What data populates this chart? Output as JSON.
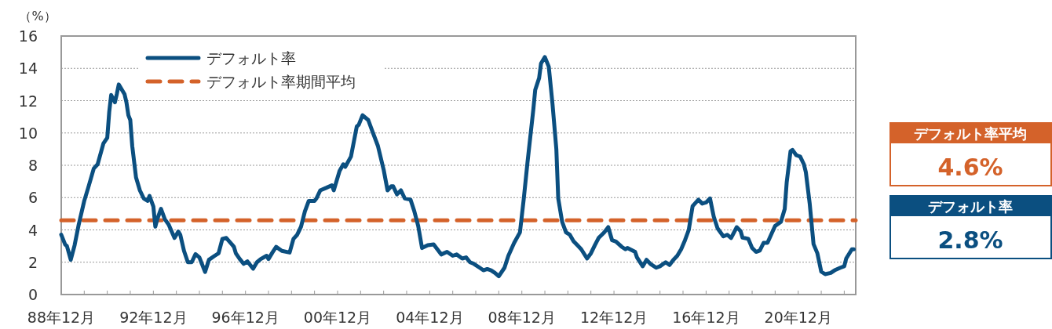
{
  "chart_data": {
    "type": "line",
    "ylabel": "（%）",
    "x": [
      "1988-12",
      "1989-02",
      "1989-03",
      "1989-05",
      "1989-07",
      "1989-09",
      "1989-12",
      "1990-02",
      "1990-05",
      "1990-07",
      "1990-10",
      "1990-12",
      "1991-01",
      "1991-02",
      "1991-04",
      "1991-05",
      "1991-06",
      "1991-09",
      "1991-10",
      "1991-11",
      "1991-12",
      "1992-01",
      "1992-03",
      "1992-05",
      "1992-07",
      "1992-09",
      "1992-10",
      "1992-12",
      "1993-01",
      "1993-02",
      "1993-04",
      "1993-06",
      "1993-08",
      "1993-11",
      "1994-01",
      "1994-02",
      "1994-04",
      "1994-06",
      "1994-08",
      "1994-10",
      "1994-12",
      "1995-03",
      "1995-05",
      "1995-08",
      "1995-10",
      "1995-12",
      "1996-02",
      "1996-05",
      "1996-06",
      "1996-07",
      "1996-09",
      "1996-11",
      "1997-01",
      "1997-04",
      "1997-06",
      "1997-08",
      "1997-11",
      "1997-12",
      "1998-02",
      "1998-04",
      "1998-07",
      "1998-11",
      "1999-01",
      "1999-03",
      "1999-05",
      "1999-07",
      "1999-09",
      "1999-12",
      "2000-01",
      "2000-03",
      "2000-06",
      "2000-09",
      "2000-10",
      "2001-01",
      "2001-03",
      "2001-04",
      "2001-07",
      "2001-10",
      "2001-11",
      "2002-01",
      "2002-04",
      "2002-06",
      "2002-09",
      "2002-12",
      "2003-02",
      "2003-04",
      "2003-05",
      "2003-07",
      "2003-09",
      "2003-11",
      "2004-02",
      "2004-04",
      "2004-06",
      "2004-08",
      "2004-11",
      "2005-02",
      "2005-04",
      "2005-06",
      "2005-09",
      "2005-12",
      "2006-02",
      "2006-05",
      "2006-07",
      "2006-09",
      "2006-11",
      "2007-02",
      "2007-04",
      "2007-06",
      "2007-08",
      "2007-10",
      "2007-12",
      "2008-03",
      "2008-05",
      "2008-08",
      "2008-11",
      "2009-01",
      "2009-03",
      "2009-06",
      "2009-07",
      "2009-09",
      "2009-10",
      "2009-12",
      "2010-02",
      "2010-04",
      "2010-06",
      "2010-07",
      "2010-09",
      "2010-11",
      "2011-01",
      "2011-03",
      "2011-05",
      "2011-07",
      "2011-10",
      "2011-12",
      "2012-02",
      "2012-04",
      "2012-07",
      "2012-09",
      "2012-11",
      "2013-01",
      "2013-04",
      "2013-06",
      "2013-07",
      "2013-11",
      "2013-12",
      "2014-03",
      "2014-05",
      "2014-07",
      "2014-10",
      "2014-12",
      "2015-03",
      "2015-05",
      "2015-07",
      "2015-09",
      "2015-11",
      "2016-01",
      "2016-03",
      "2016-05",
      "2016-08",
      "2016-10",
      "2016-12",
      "2017-02",
      "2017-04",
      "2017-06",
      "2017-09",
      "2017-11",
      "2018-01",
      "2018-04",
      "2018-06",
      "2018-07",
      "2018-10",
      "2018-12",
      "2019-02",
      "2019-04",
      "2019-06",
      "2019-08",
      "2019-12",
      "2020-03",
      "2020-05",
      "2020-06",
      "2020-08",
      "2020-09",
      "2020-11",
      "2021-01",
      "2021-03",
      "2021-04",
      "2021-06",
      "2021-08",
      "2021-10",
      "2021-12",
      "2022-02",
      "2022-05",
      "2022-07",
      "2022-10",
      "2022-12",
      "2023-01",
      "2023-04",
      "2023-05"
    ],
    "series": [
      {
        "name": "デフォルト率",
        "color": "#0b4f80",
        "values": [
          3.7,
          3.1,
          3.0,
          2.15,
          3.05,
          4.27,
          5.8,
          6.6,
          7.8,
          8.06,
          9.35,
          9.7,
          11.3,
          12.35,
          11.9,
          12.4,
          13.0,
          12.4,
          11.9,
          11.1,
          10.8,
          9.2,
          7.25,
          6.45,
          5.95,
          5.8,
          6.1,
          5.45,
          4.2,
          4.66,
          5.3,
          4.66,
          4.33,
          3.5,
          3.9,
          3.7,
          2.7,
          2.0,
          2.0,
          2.5,
          2.3,
          1.4,
          2.15,
          2.4,
          2.55,
          3.45,
          3.5,
          3.1,
          2.95,
          2.55,
          2.2,
          1.9,
          2.05,
          1.6,
          2.0,
          2.2,
          2.4,
          2.2,
          2.6,
          2.95,
          2.7,
          2.6,
          3.45,
          3.7,
          4.2,
          5.15,
          5.8,
          5.8,
          5.95,
          6.45,
          6.6,
          6.76,
          6.45,
          7.65,
          8.06,
          7.9,
          8.54,
          10.4,
          10.5,
          11.1,
          10.8,
          10.15,
          9.2,
          7.73,
          6.45,
          6.7,
          6.7,
          6.2,
          6.45,
          5.95,
          5.87,
          5.15,
          4.25,
          2.88,
          3.05,
          3.1,
          2.8,
          2.48,
          2.64,
          2.4,
          2.48,
          2.23,
          2.3,
          2.0,
          1.9,
          1.66,
          1.5,
          1.58,
          1.5,
          1.34,
          1.13,
          1.66,
          2.4,
          3.2,
          3.85,
          5.95,
          8.2,
          11.45,
          12.67,
          13.4,
          14.3,
          14.7,
          14.1,
          11.8,
          9.0,
          5.95,
          4.5,
          3.85,
          3.7,
          3.3,
          3.05,
          2.8,
          2.23,
          2.55,
          3.05,
          3.5,
          3.85,
          4.17,
          3.36,
          3.28,
          2.96,
          2.8,
          2.88,
          2.64,
          2.3,
          1.75,
          2.15,
          1.9,
          1.66,
          1.75,
          2.0,
          1.83,
          2.15,
          2.4,
          2.8,
          3.36,
          4.0,
          5.47,
          5.87,
          5.63,
          5.7,
          5.95,
          4.82,
          4.1,
          3.6,
          3.7,
          3.5,
          4.17,
          3.93,
          3.53,
          3.45,
          2.88,
          2.64,
          2.72,
          3.2,
          3.2,
          4.25,
          4.5,
          5.3,
          6.93,
          8.87,
          8.95,
          8.62,
          8.54,
          8.06,
          7.57,
          5.63,
          3.12,
          2.55,
          1.42,
          1.26,
          1.34,
          1.5,
          1.66,
          1.75,
          2.23,
          2.8,
          2.8
        ]
      }
    ],
    "ref_lines": [
      {
        "axis": "y",
        "value": 4.6,
        "label": "デフォルト率期間平均",
        "color": "#d4622a",
        "line_style": "dashed"
      }
    ],
    "xlim": [
      "1988-12",
      "2023-06"
    ],
    "xticks": [
      {
        "value": "1988-12",
        "label": "88年12月"
      },
      {
        "value": "1989-12",
        "label": null
      },
      {
        "value": "1990-12",
        "label": null
      },
      {
        "value": "1991-12",
        "label": null
      },
      {
        "value": "1992-12",
        "label": "92年12月"
      },
      {
        "value": "1993-12",
        "label": null
      },
      {
        "value": "1994-12",
        "label": null
      },
      {
        "value": "1995-12",
        "label": null
      },
      {
        "value": "1996-12",
        "label": "96年12月"
      },
      {
        "value": "1997-12",
        "label": null
      },
      {
        "value": "1998-12",
        "label": null
      },
      {
        "value": "1999-12",
        "label": null
      },
      {
        "value": "2000-12",
        "label": "00年12月"
      },
      {
        "value": "2001-12",
        "label": null
      },
      {
        "value": "2002-12",
        "label": null
      },
      {
        "value": "2003-12",
        "label": null
      },
      {
        "value": "2004-12",
        "label": "04年12月"
      },
      {
        "value": "2005-12",
        "label": null
      },
      {
        "value": "2006-12",
        "label": null
      },
      {
        "value": "2007-12",
        "label": null
      },
      {
        "value": "2008-12",
        "label": "08年12月"
      },
      {
        "value": "2009-12",
        "label": null
      },
      {
        "value": "2010-12",
        "label": null
      },
      {
        "value": "2011-12",
        "label": null
      },
      {
        "value": "2012-12",
        "label": "12年12月"
      },
      {
        "value": "2013-12",
        "label": null
      },
      {
        "value": "2014-12",
        "label": null
      },
      {
        "value": "2015-12",
        "label": null
      },
      {
        "value": "2016-12",
        "label": "16年12月"
      },
      {
        "value": "2017-12",
        "label": null
      },
      {
        "value": "2018-12",
        "label": null
      },
      {
        "value": "2019-12",
        "label": null
      },
      {
        "value": "2020-12",
        "label": "20年12月"
      },
      {
        "value": "2021-12",
        "label": null
      },
      {
        "value": "2022-12",
        "label": null
      }
    ],
    "ylim": [
      0,
      16
    ],
    "yticks": [
      0,
      2,
      4,
      6,
      8,
      10,
      12,
      14,
      16
    ],
    "grid": "y",
    "legend": "top left",
    "line_style": "solid",
    "marker": "none",
    "annotations": [
      "デフォルト率平均",
      "4.6%",
      "デフォルト率",
      "2.8%"
    ]
  }
}
